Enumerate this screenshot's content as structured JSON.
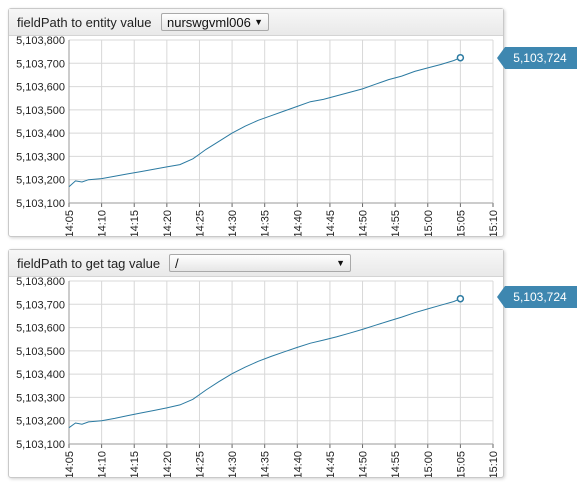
{
  "widgets": [
    {
      "label": "fieldPath to entity value",
      "select_value": "nurswgvml006"
    },
    {
      "label": "fieldPath to get tag value",
      "select_value": "/"
    }
  ],
  "colors": {
    "series": "#2b7aa1",
    "grid": "#d8d8d8",
    "callout": "#3e87b0"
  },
  "icons": {
    "select_arrow": "chevron-down-icon"
  },
  "chart_data": [
    {
      "type": "line",
      "title": "",
      "xlabel": "",
      "ylabel": "",
      "ylim": [
        5103100,
        5103800
      ],
      "yticks": [
        "5,103,100",
        "5,103,200",
        "5,103,300",
        "5,103,400",
        "5,103,500",
        "5,103,600",
        "5,103,700",
        "5,103,800"
      ],
      "xticks": [
        "14:05",
        "14:10",
        "14:15",
        "14:20",
        "14:25",
        "14:30",
        "14:35",
        "14:40",
        "14:45",
        "14:50",
        "14:55",
        "15:00",
        "15:05",
        "15:10"
      ],
      "grid": true,
      "series": [
        {
          "last_value_label": "5,103,724",
          "x": [
            "14:05",
            "14:06",
            "14:07",
            "14:08",
            "14:10",
            "14:12",
            "14:14",
            "14:16",
            "14:18",
            "14:20",
            "14:22",
            "14:24",
            "14:25",
            "14:26",
            "14:28",
            "14:30",
            "14:32",
            "14:34",
            "14:36",
            "14:38",
            "14:40",
            "14:42",
            "14:44",
            "14:46",
            "14:48",
            "14:50",
            "14:52",
            "14:54",
            "14:56",
            "14:58",
            "15:00",
            "15:02",
            "15:04",
            "15:05"
          ],
          "values": [
            5103170,
            5103195,
            5103190,
            5103200,
            5103205,
            5103215,
            5103225,
            5103235,
            5103245,
            5103255,
            5103265,
            5103290,
            5103310,
            5103330,
            5103365,
            5103400,
            5103430,
            5103455,
            5103475,
            5103495,
            5103515,
            5103535,
            5103545,
            5103560,
            5103575,
            5103590,
            5103610,
            5103630,
            5103645,
            5103665,
            5103680,
            5103695,
            5103712,
            5103724
          ]
        }
      ]
    },
    {
      "type": "line",
      "title": "",
      "xlabel": "",
      "ylabel": "",
      "ylim": [
        5103100,
        5103800
      ],
      "yticks": [
        "5,103,100",
        "5,103,200",
        "5,103,300",
        "5,103,400",
        "5,103,500",
        "5,103,600",
        "5,103,700",
        "5,103,800"
      ],
      "xticks": [
        "14:05",
        "14:10",
        "14:15",
        "14:20",
        "14:25",
        "14:30",
        "14:35",
        "14:40",
        "14:45",
        "14:50",
        "14:55",
        "15:00",
        "15:05",
        "15:10"
      ],
      "grid": true,
      "series": [
        {
          "last_value_label": "5,103,724",
          "x": [
            "14:05",
            "14:06",
            "14:07",
            "14:08",
            "14:10",
            "14:12",
            "14:14",
            "14:16",
            "14:18",
            "14:20",
            "14:22",
            "14:24",
            "14:25",
            "14:26",
            "14:28",
            "14:30",
            "14:32",
            "14:34",
            "14:36",
            "14:38",
            "14:40",
            "14:42",
            "14:44",
            "14:46",
            "14:48",
            "14:50",
            "14:52",
            "14:54",
            "14:56",
            "14:58",
            "15:00",
            "15:02",
            "15:04",
            "15:05"
          ],
          "values": [
            5103170,
            5103190,
            5103185,
            5103195,
            5103200,
            5103210,
            5103222,
            5103233,
            5103244,
            5103255,
            5103268,
            5103292,
            5103312,
            5103332,
            5103368,
            5103402,
            5103430,
            5103455,
            5103476,
            5103496,
            5103515,
            5103533,
            5103546,
            5103560,
            5103576,
            5103592,
            5103610,
            5103628,
            5103645,
            5103664,
            5103680,
            5103696,
            5103712,
            5103724
          ]
        }
      ]
    }
  ]
}
